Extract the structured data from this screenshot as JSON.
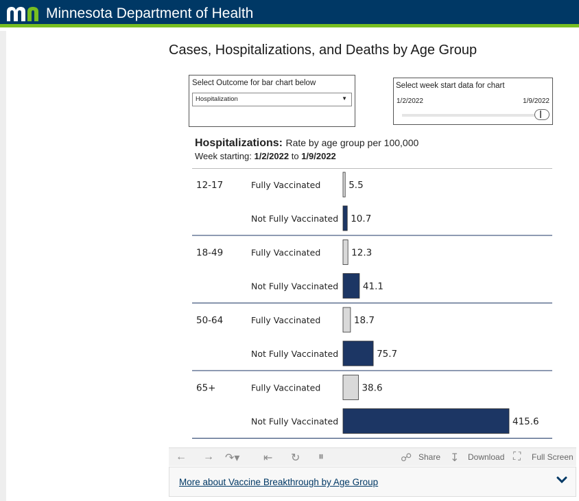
{
  "header": {
    "title": "Minnesota Department of Health"
  },
  "page": {
    "title": "Cases, Hospitalizations, and Deaths by Age Group"
  },
  "filters": {
    "outcome_label": "Select Outcome for bar chart below",
    "outcome_value": "Hospitalization",
    "week_label": "Select week start data for chart",
    "week_start": "1/2/2022",
    "week_end": "1/9/2022"
  },
  "chart_heading": {
    "title_bold": "Hospitalizations:",
    "title_rest": "Rate by age group per 100,000",
    "week_prefix": "Week starting:",
    "week_from": "1/2/2022",
    "week_to_word": "to",
    "week_to": "1/9/2022"
  },
  "colors": {
    "header": "#003865",
    "accent": "#78be21",
    "not_vaccinated": "#1c3664",
    "vaccinated": "#d9d9d9"
  },
  "chart_data": {
    "type": "bar",
    "orientation": "horizontal",
    "categories": [
      "12-17",
      "18-49",
      "50-64",
      "65+"
    ],
    "series": [
      {
        "name": "Fully Vaccinated",
        "values": [
          5.5,
          12.3,
          18.7,
          38.6
        ],
        "color": "#d9d9d9"
      },
      {
        "name": "Not Fully Vaccinated",
        "values": [
          10.7,
          41.1,
          75.7,
          415.6
        ],
        "color": "#1c3664"
      }
    ],
    "value_labels": {
      "Fully Vaccinated": [
        "5.5",
        "12.3",
        "18.7",
        "38.6"
      ],
      "Not Fully Vaccinated": [
        "10.7",
        "41.1",
        "75.7",
        "415.6"
      ]
    },
    "xlim": [
      0,
      415.6
    ]
  },
  "toolbar": {
    "share": "Share",
    "download": "Download",
    "fullscreen": "Full Screen",
    "icons": [
      "undo-icon",
      "redo-icon",
      "revert-icon",
      "first-icon",
      "refresh-icon",
      "pause-icon",
      "share-icon",
      "download-icon",
      "fullscreen-icon"
    ]
  },
  "more": {
    "link": "More about Vaccine Breakthrough by Age Group"
  }
}
